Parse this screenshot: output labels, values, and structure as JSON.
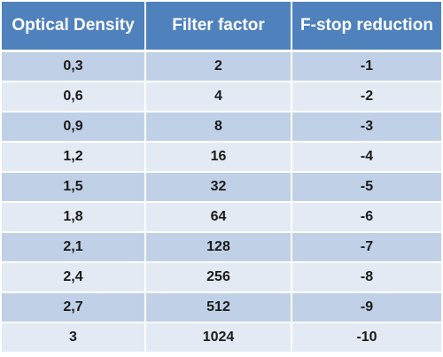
{
  "table": {
    "headers": [
      "Optical Density",
      "Filter factor",
      "F-stop reduction"
    ],
    "rows": [
      [
        "0,3",
        "2",
        "-1"
      ],
      [
        "0,6",
        "4",
        "-2"
      ],
      [
        "0,9",
        "8",
        "-3"
      ],
      [
        "1,2",
        "16",
        "-4"
      ],
      [
        "1,5",
        "32",
        "-5"
      ],
      [
        "1,8",
        "64",
        "-6"
      ],
      [
        "2,1",
        "128",
        "-7"
      ],
      [
        "2,4",
        "256",
        "-8"
      ],
      [
        "2,7",
        "512",
        "-9"
      ],
      [
        "3",
        "1024",
        "-10"
      ]
    ]
  },
  "colors": {
    "header_background": "#4f81bd",
    "header_text": "#ffffff",
    "row_dark": "#c0d0e6",
    "row_light": "#e4eaf4",
    "cell_text": "#1a1a1a"
  }
}
